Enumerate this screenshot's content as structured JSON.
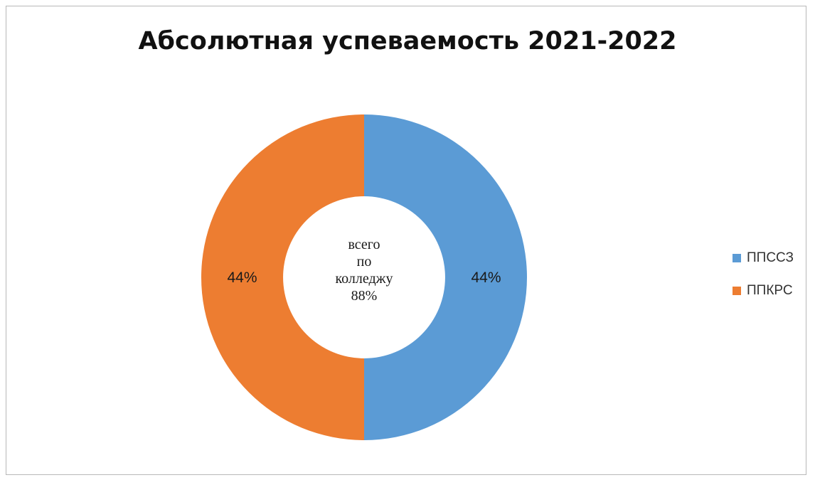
{
  "chart_data": {
    "type": "pie",
    "variant": "donut",
    "title": "Абсолютная успеваемость 2021-2022",
    "series": [
      {
        "name": "ППССЗ",
        "value": 44,
        "label": "44%",
        "color": "#5B9BD5"
      },
      {
        "name": "ППКРС",
        "value": 44,
        "label": "44%",
        "color": "#ED7D31"
      }
    ],
    "center_label": [
      "всего",
      "по",
      "колледжу",
      "88%"
    ],
    "legend_position": "right"
  }
}
